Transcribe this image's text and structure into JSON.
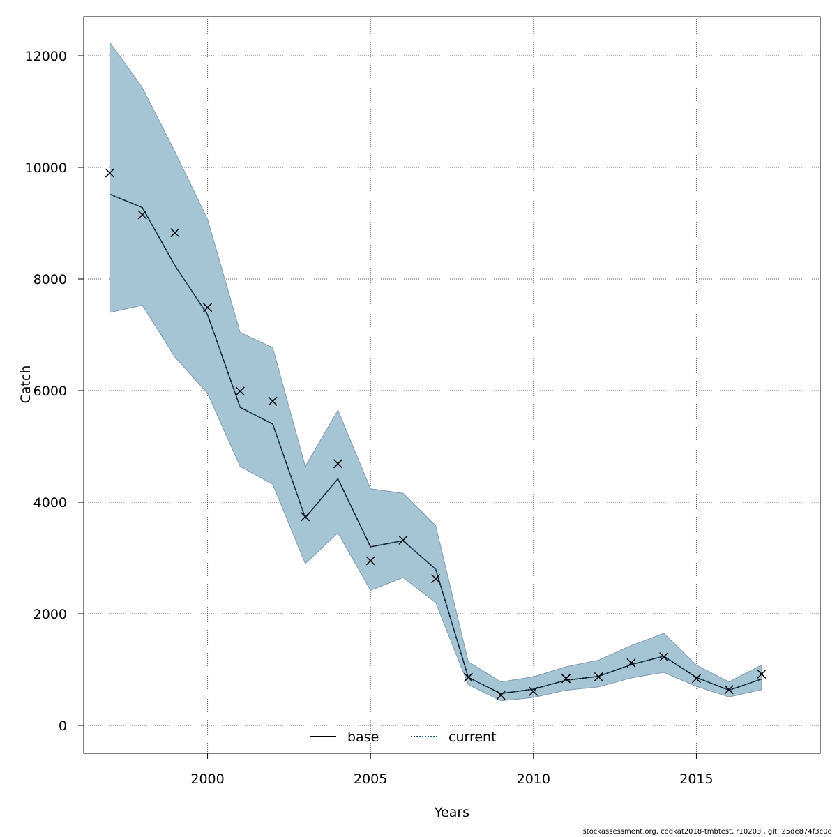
{
  "chart_data": {
    "type": "line",
    "xlabel": "Years",
    "ylabel": "Catch",
    "xlim": [
      1996.2,
      2018.8
    ],
    "ylim": [
      -500,
      12700
    ],
    "x_ticks": [
      2000,
      2005,
      2010,
      2015
    ],
    "y_ticks": [
      0,
      2000,
      4000,
      6000,
      8000,
      10000,
      12000
    ],
    "grid": true,
    "legend": {
      "placement": "bottom-center",
      "entries": [
        "base",
        "current"
      ]
    },
    "x": [
      1997,
      1998,
      1999,
      2000,
      2001,
      2002,
      2003,
      2004,
      2005,
      2006,
      2007,
      2008,
      2009,
      2010,
      2011,
      2012,
      2013,
      2014,
      2015,
      2016,
      2017
    ],
    "band": {
      "color": "#a5c4d4",
      "upper": [
        12240,
        11430,
        10280,
        9070,
        7040,
        6770,
        4640,
        5650,
        4240,
        4160,
        3580,
        1140,
        780,
        870,
        1050,
        1170,
        1430,
        1650,
        1080,
        780,
        1080
      ],
      "lower": [
        7400,
        7530,
        6600,
        5950,
        4640,
        4320,
        2900,
        3450,
        2420,
        2650,
        2200,
        730,
        440,
        500,
        630,
        690,
        850,
        950,
        700,
        510,
        640
      ]
    },
    "series": [
      {
        "name": "base",
        "style": "solid",
        "color": "#000000",
        "values": [
          9520,
          9280,
          8240,
          7360,
          5700,
          5400,
          3720,
          4420,
          3200,
          3310,
          2800,
          860,
          570,
          650,
          810,
          880,
          1090,
          1240,
          860,
          630,
          830
        ]
      },
      {
        "name": "current",
        "style": "dotted",
        "color": "#1a5a8a",
        "values": [
          9520,
          9280,
          8240,
          7360,
          5700,
          5400,
          3720,
          4420,
          3200,
          3310,
          2800,
          860,
          570,
          650,
          810,
          880,
          1090,
          1240,
          860,
          630,
          830
        ]
      }
    ],
    "observed": {
      "marker": "x",
      "values": [
        9900,
        9150,
        8830,
        7490,
        5990,
        5810,
        3740,
        4690,
        2950,
        3320,
        2630,
        860,
        540,
        610,
        840,
        870,
        1120,
        1230,
        840,
        640,
        920
      ]
    }
  },
  "footer": "stockassessment.org, codkat2018-tmbtest, r10203 , git: 25de874f3c0c"
}
